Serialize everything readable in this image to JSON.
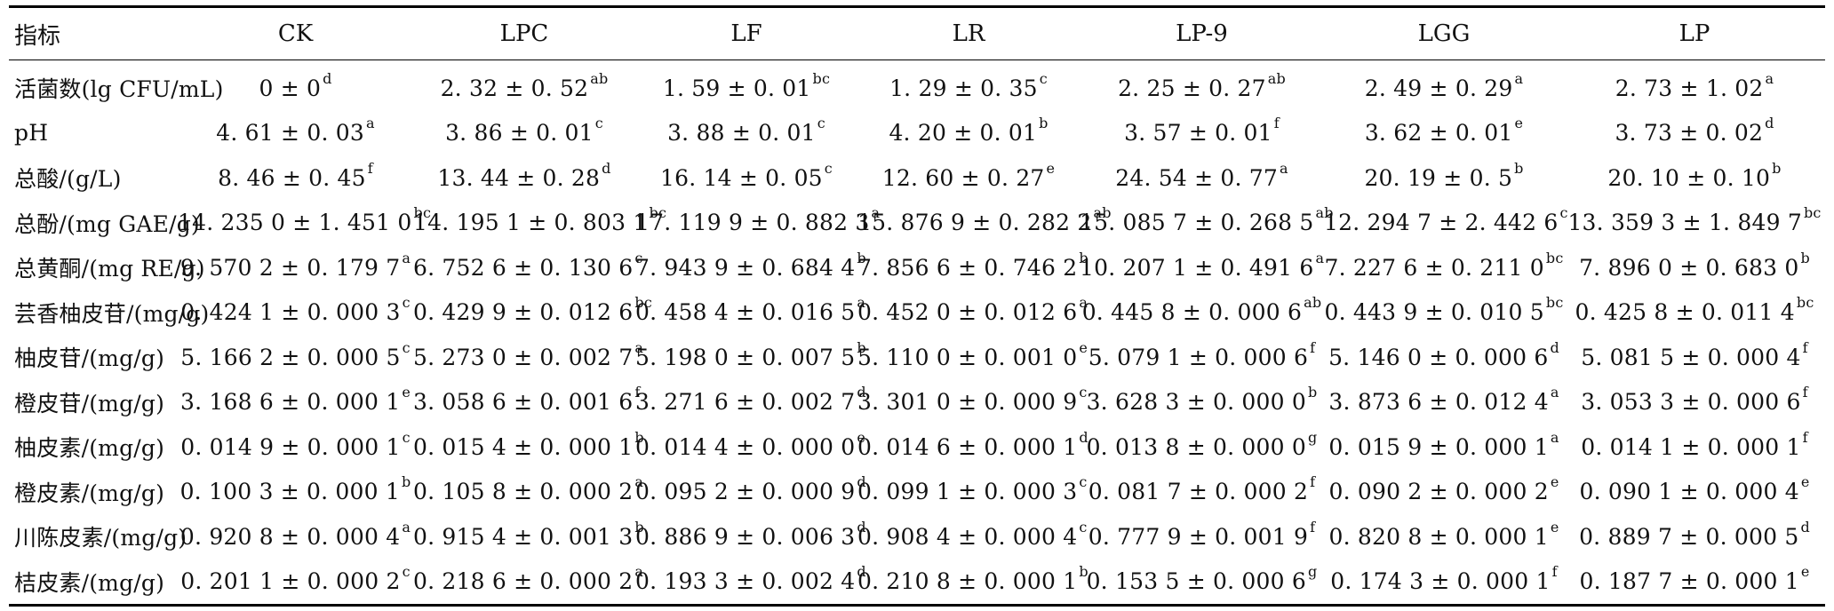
{
  "table": {
    "headers": [
      "指标",
      "CK",
      "LPC",
      "LF",
      "LR",
      "LP-9",
      "LGG",
      "LP"
    ],
    "rows": [
      {
        "label": "活菌数(lg CFU/mL)",
        "cells": [
          {
            "v": "0 ± 0",
            "s": "d"
          },
          {
            "v": "2. 32 ± 0. 52",
            "s": "ab"
          },
          {
            "v": "1. 59 ± 0. 01",
            "s": "bc"
          },
          {
            "v": "1. 29 ± 0. 35",
            "s": "c"
          },
          {
            "v": "2. 25 ± 0. 27",
            "s": "ab"
          },
          {
            "v": "2. 49 ± 0. 29",
            "s": "a"
          },
          {
            "v": "2. 73 ± 1. 02",
            "s": "a"
          }
        ]
      },
      {
        "label": "pH",
        "cells": [
          {
            "v": "4. 61 ± 0. 03",
            "s": "a"
          },
          {
            "v": "3. 86 ± 0. 01",
            "s": "c"
          },
          {
            "v": "3. 88 ± 0. 01",
            "s": "c"
          },
          {
            "v": "4. 20 ± 0. 01",
            "s": "b"
          },
          {
            "v": "3. 57 ± 0. 01",
            "s": "f"
          },
          {
            "v": "3. 62 ± 0. 01",
            "s": "e"
          },
          {
            "v": "3. 73 ± 0. 02",
            "s": "d"
          }
        ]
      },
      {
        "label": "总酸/(g/L)",
        "cells": [
          {
            "v": "8. 46 ± 0. 45",
            "s": "f"
          },
          {
            "v": "13. 44 ± 0. 28",
            "s": "d"
          },
          {
            "v": "16. 14 ± 0. 05",
            "s": "c"
          },
          {
            "v": "12. 60 ± 0. 27",
            "s": "e"
          },
          {
            "v": "24. 54 ± 0. 77",
            "s": "a"
          },
          {
            "v": "20. 19 ± 0. 5",
            "s": "b"
          },
          {
            "v": "20. 10 ± 0. 10",
            "s": "b"
          }
        ]
      },
      {
        "label": "总酚/(mg GAE/g)",
        "cells": [
          {
            "v": "14. 235 0 ± 1. 451 0",
            "s": "bc"
          },
          {
            "v": "14. 195 1 ± 0. 803 1",
            "s": "bc"
          },
          {
            "v": "17. 119 9 ± 0. 882 3",
            "s": "a"
          },
          {
            "v": "15. 876 9 ± 0. 282 2",
            "s": "ab"
          },
          {
            "v": "15. 085 7 ± 0. 268 5",
            "s": "ab"
          },
          {
            "v": "12. 294 7 ± 2. 442 6",
            "s": "c"
          },
          {
            "v": "13. 359 3 ± 1. 849 7",
            "s": "bc"
          }
        ]
      },
      {
        "label": "总黄酮/(mg RE/g)",
        "cells": [
          {
            "v": "9. 570 2 ± 0. 179 7",
            "s": "a"
          },
          {
            "v": "6. 752 6 ± 0. 130 6",
            "s": "c"
          },
          {
            "v": "7. 943 9 ± 0. 684 4",
            "s": "b"
          },
          {
            "v": "7. 856 6 ± 0. 746 2",
            "s": "b"
          },
          {
            "v": "10. 207 1 ± 0. 491 6",
            "s": "a"
          },
          {
            "v": "7. 227 6 ± 0. 211 0",
            "s": "bc"
          },
          {
            "v": "7. 896 0 ± 0. 683 0",
            "s": "b"
          }
        ]
      },
      {
        "label": "芸香柚皮苷/(mg/g)",
        "cells": [
          {
            "v": "0. 424 1 ± 0. 000 3",
            "s": "c"
          },
          {
            "v": "0. 429 9 ± 0. 012 6",
            "s": "bc"
          },
          {
            "v": "0. 458 4 ± 0. 016 5",
            "s": "a"
          },
          {
            "v": "0. 452 0 ± 0. 012 6",
            "s": "a"
          },
          {
            "v": "0. 445 8 ± 0. 000 6",
            "s": "ab"
          },
          {
            "v": "0. 443 9 ± 0. 010 5",
            "s": "bc"
          },
          {
            "v": "0. 425 8 ± 0. 011 4",
            "s": "bc"
          }
        ]
      },
      {
        "label": "柚皮苷/(mg/g)",
        "cells": [
          {
            "v": "5. 166 2 ± 0. 000 5",
            "s": "c"
          },
          {
            "v": "5. 273 0 ± 0. 002 7",
            "s": "a"
          },
          {
            "v": "5. 198 0 ± 0. 007 5",
            "s": "b"
          },
          {
            "v": "5. 110 0 ± 0. 001 0",
            "s": "e"
          },
          {
            "v": "5. 079 1 ± 0. 000 6",
            "s": "f"
          },
          {
            "v": "5. 146 0 ± 0. 000 6",
            "s": "d"
          },
          {
            "v": "5. 081 5 ± 0. 000 4",
            "s": "f"
          }
        ]
      },
      {
        "label": "橙皮苷/(mg/g)",
        "cells": [
          {
            "v": "3. 168 6 ± 0. 000 1",
            "s": "e"
          },
          {
            "v": "3. 058 6 ± 0. 001 6",
            "s": "f"
          },
          {
            "v": "3. 271 6 ± 0. 002 7",
            "s": "d"
          },
          {
            "v": "3. 301 0 ± 0. 000 9",
            "s": "c"
          },
          {
            "v": "3. 628 3 ± 0. 000 0",
            "s": "b"
          },
          {
            "v": "3. 873 6 ± 0. 012 4",
            "s": "a"
          },
          {
            "v": "3. 053 3 ± 0. 000 6",
            "s": "f"
          }
        ]
      },
      {
        "label": "柚皮素/(mg/g)",
        "cells": [
          {
            "v": "0. 014 9 ± 0. 000 1",
            "s": "c"
          },
          {
            "v": "0. 015 4 ± 0. 000 1",
            "s": "b"
          },
          {
            "v": "0. 014 4 ± 0. 000 0",
            "s": "e"
          },
          {
            "v": "0. 014 6 ± 0. 000 1",
            "s": "d"
          },
          {
            "v": "0. 013 8 ± 0. 000 0",
            "s": "g"
          },
          {
            "v": "0. 015 9 ± 0. 000 1",
            "s": "a"
          },
          {
            "v": "0. 014 1 ± 0. 000 1",
            "s": "f"
          }
        ]
      },
      {
        "label": "橙皮素/(mg/g)",
        "cells": [
          {
            "v": "0. 100 3 ± 0. 000 1",
            "s": "b"
          },
          {
            "v": "0. 105 8 ± 0. 000 2",
            "s": "a"
          },
          {
            "v": "0. 095 2 ± 0. 000 9",
            "s": "d"
          },
          {
            "v": "0. 099 1 ± 0. 000 3",
            "s": "c"
          },
          {
            "v": "0. 081 7 ± 0. 000 2",
            "s": "f"
          },
          {
            "v": "0. 090 2 ± 0. 000 2",
            "s": "e"
          },
          {
            "v": "0. 090 1 ± 0. 000 4",
            "s": "e"
          }
        ]
      },
      {
        "label": "川陈皮素/(mg/g)",
        "cells": [
          {
            "v": "0. 920 8 ± 0. 000 4",
            "s": "a"
          },
          {
            "v": "0. 915 4 ± 0. 001 3",
            "s": "b"
          },
          {
            "v": "0. 886 9 ± 0. 006 3",
            "s": "d"
          },
          {
            "v": "0. 908 4 ± 0. 000 4",
            "s": "c"
          },
          {
            "v": "0. 777 9 ± 0. 001 9",
            "s": "f"
          },
          {
            "v": "0. 820 8 ± 0. 000 1",
            "s": "e"
          },
          {
            "v": "0. 889 7 ± 0. 000 5",
            "s": "d"
          }
        ]
      },
      {
        "label": "桔皮素/(mg/g)",
        "cells": [
          {
            "v": "0. 201 1 ± 0. 000 2",
            "s": "c"
          },
          {
            "v": "0. 218 6 ± 0. 000 2",
            "s": "a"
          },
          {
            "v": "0. 193 3 ± 0. 002 4",
            "s": "d"
          },
          {
            "v": "0. 210 8 ± 0. 000 1",
            "s": "b"
          },
          {
            "v": "0. 153 5 ± 0. 000 6",
            "s": "g"
          },
          {
            "v": "0. 174 3 ± 0. 000 1",
            "s": "f"
          },
          {
            "v": "0. 187 7 ± 0. 000 1",
            "s": "e"
          }
        ]
      }
    ]
  }
}
